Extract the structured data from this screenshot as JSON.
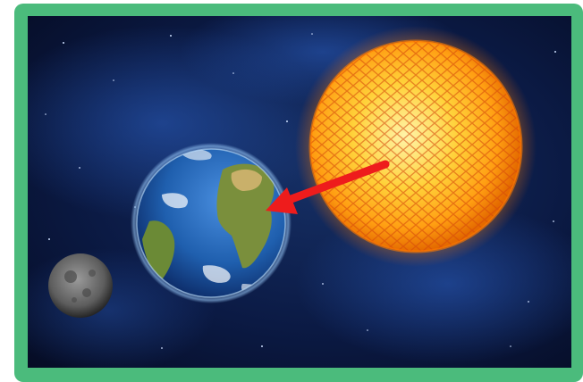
{
  "figure": {
    "frame_color": "#4bbb7c",
    "space_color": "#0a1330",
    "nebula_color": "#1d4a9a",
    "sun_color": "#ffb300",
    "sun_core_color": "#fff1a0",
    "earth_ocean_color": "#1f5fae",
    "earth_land_color": "#6f8f3a",
    "moon_color": "#6e6e6e",
    "arrow_color": "#ee1c1c",
    "arrow_direction": "sun-to-earth"
  }
}
